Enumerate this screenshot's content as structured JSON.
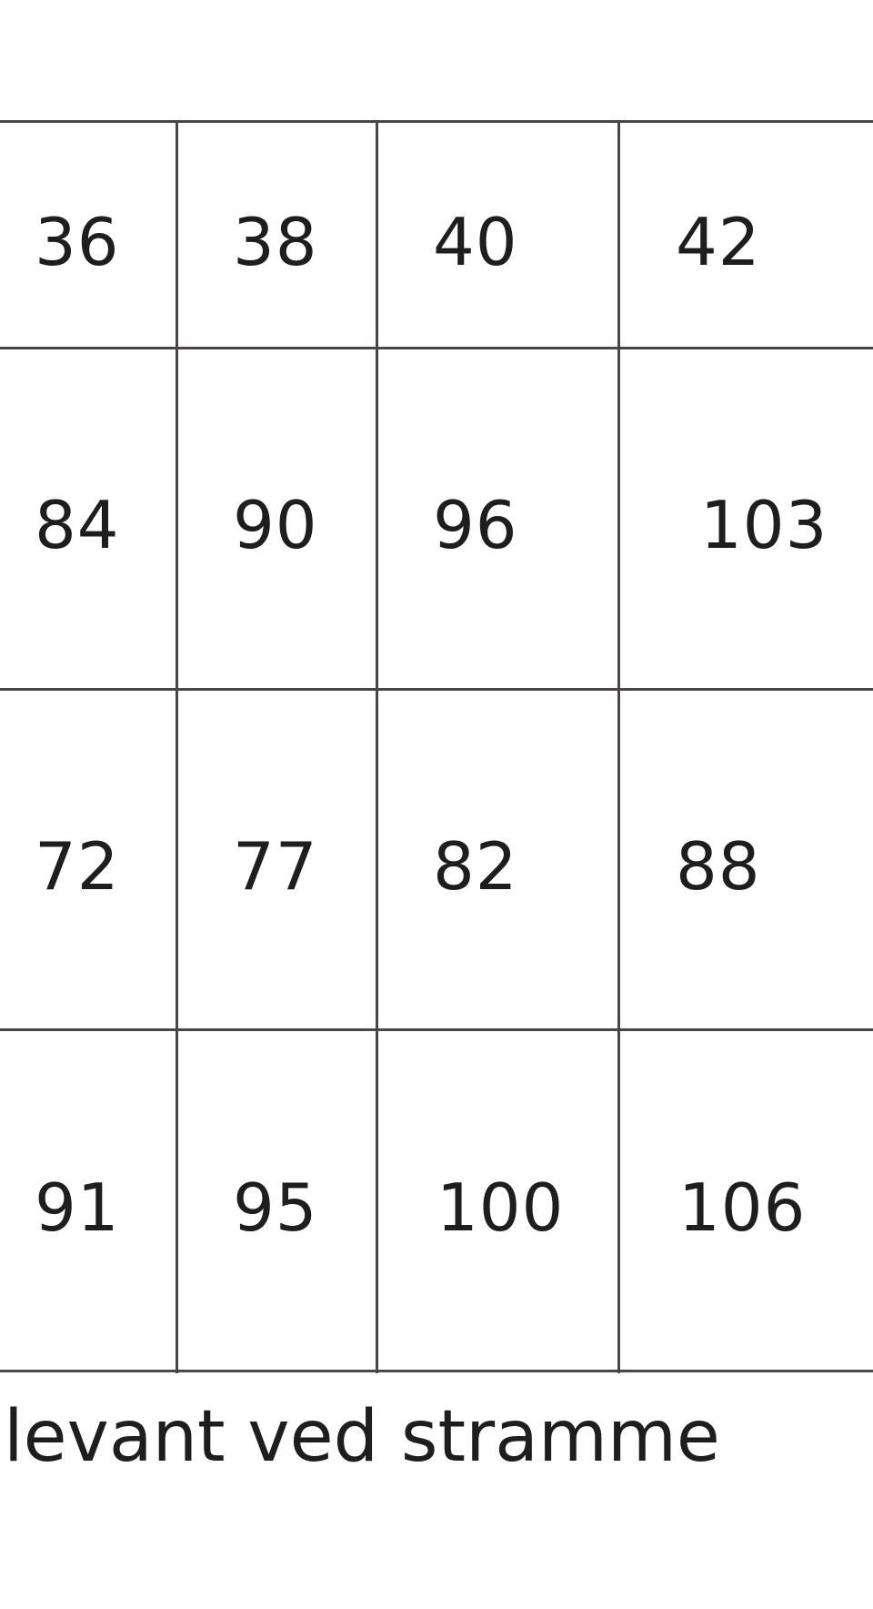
{
  "table": {
    "rows": [
      [
        "36",
        "38",
        "40",
        "42"
      ],
      [
        "84",
        "90",
        "96",
        "103"
      ],
      [
        "72",
        "77",
        "82",
        "88"
      ],
      [
        "91",
        "95",
        "100",
        "106"
      ]
    ]
  },
  "caption": "levant ved stramme"
}
